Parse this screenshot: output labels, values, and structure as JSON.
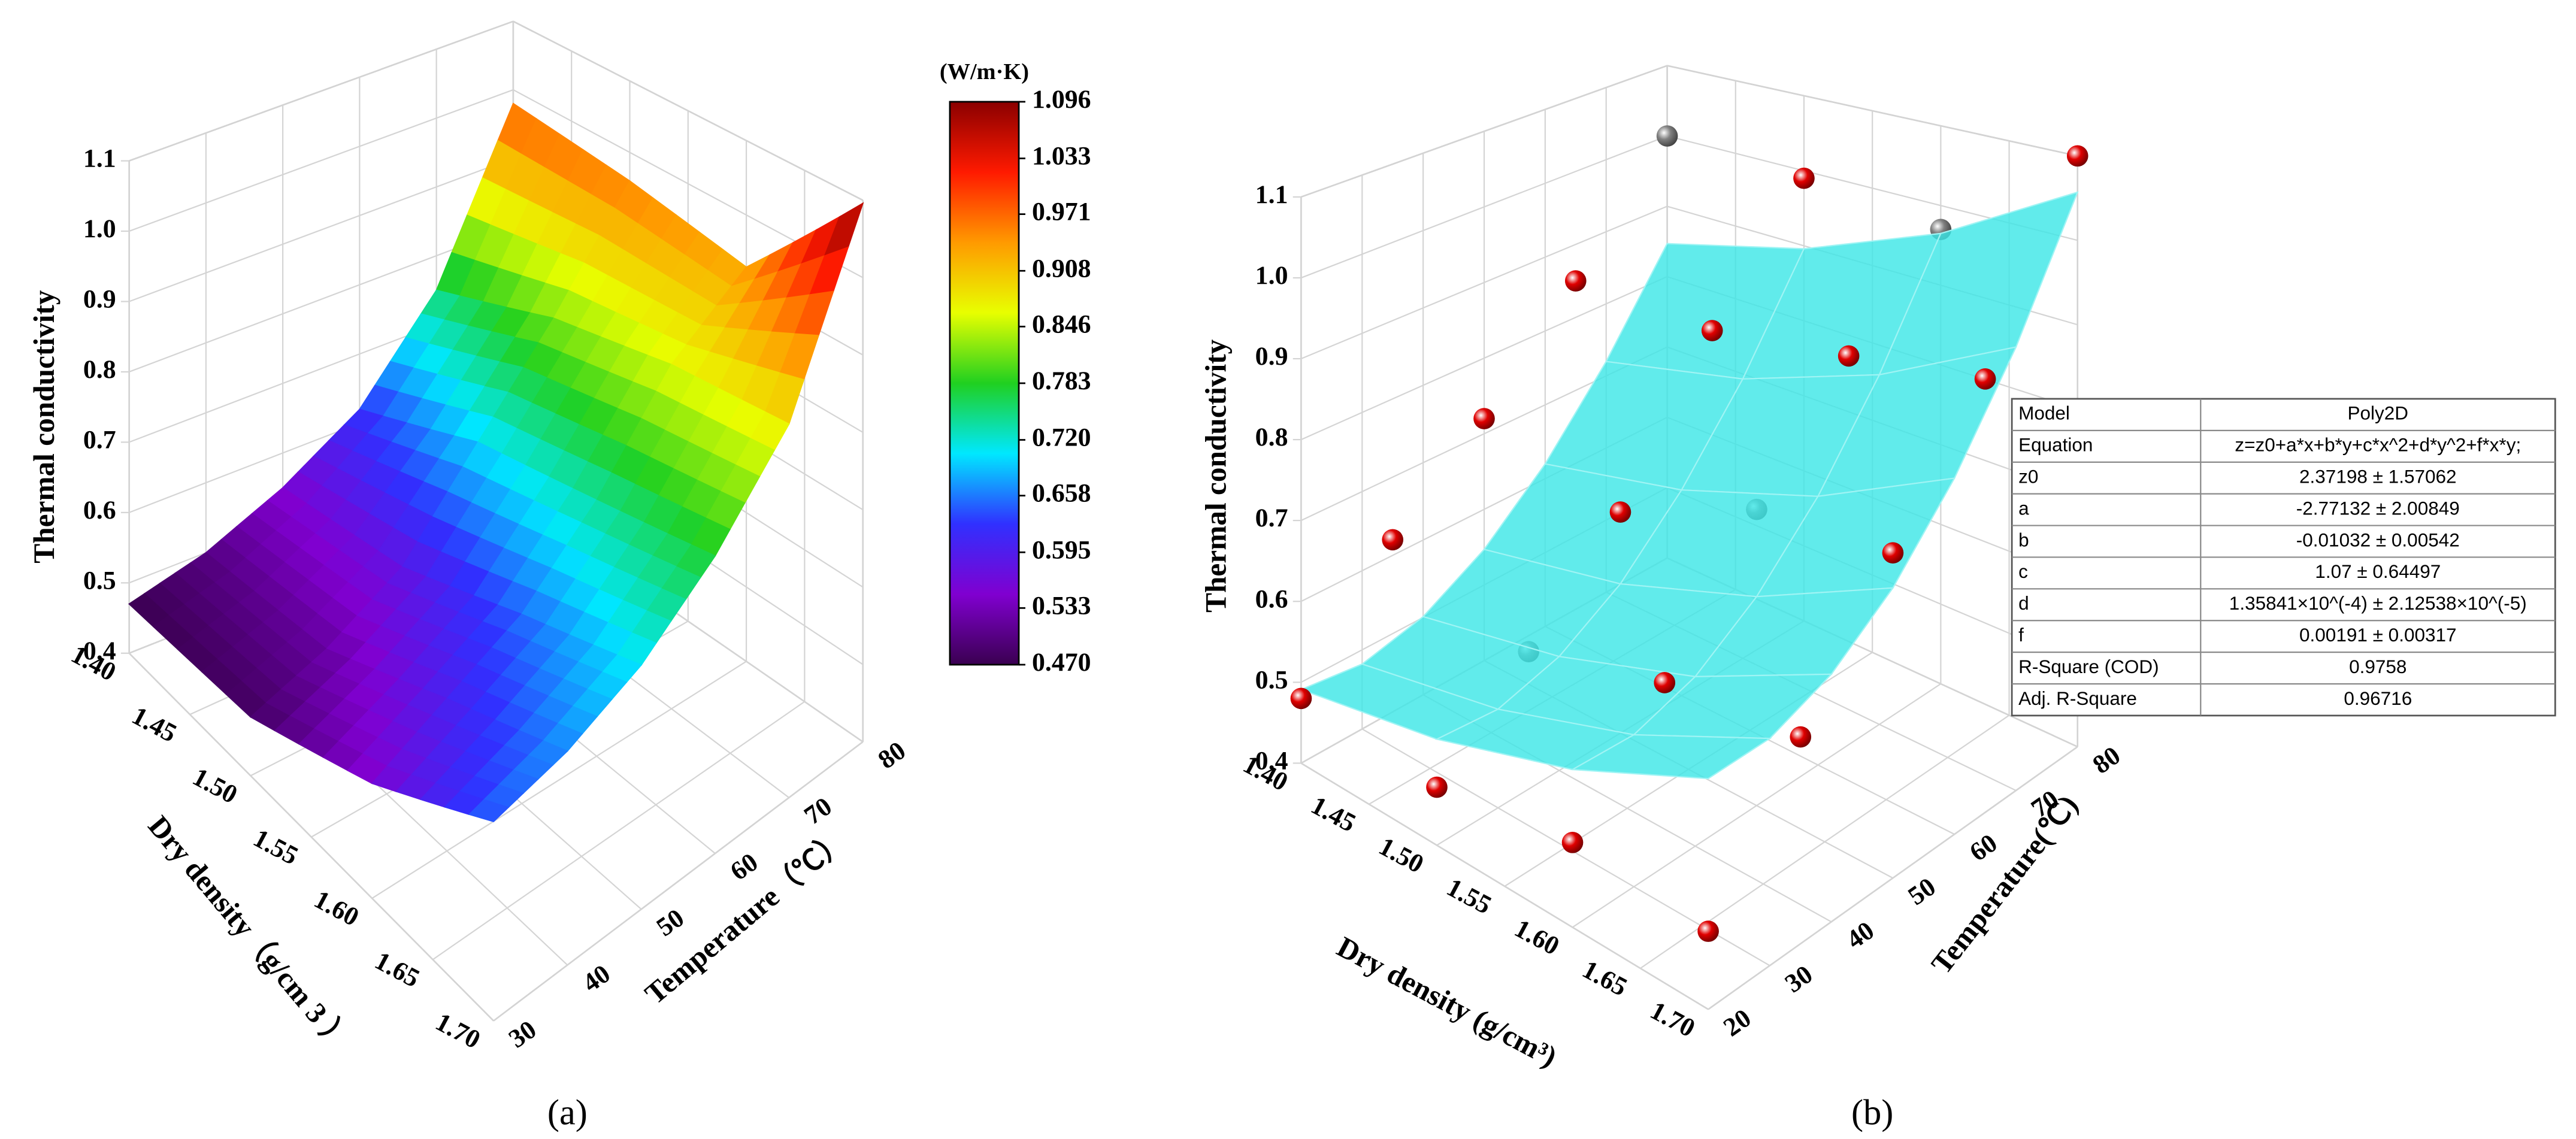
{
  "chart_data": [
    {
      "type": "surface3d",
      "panel_label": "(a)",
      "zlabel": "Thermal conductivity",
      "xlabel": "Dry density（g/cm 3 ）",
      "ylabel": "Temperature（℃）",
      "x": [
        1.4,
        1.5,
        1.6,
        1.7
      ],
      "y": [
        30,
        40,
        50,
        60,
        70,
        80
      ],
      "values": [
        [
          0.47,
          0.5,
          0.55,
          0.62,
          0.75,
          0.98
        ],
        [
          0.48,
          0.52,
          0.58,
          0.7,
          0.82,
          0.96
        ],
        [
          0.55,
          0.6,
          0.65,
          0.74,
          0.86,
          0.93
        ],
        [
          0.65,
          0.67,
          0.71,
          0.78,
          0.88,
          1.096
        ]
      ],
      "xlim": [
        1.4,
        1.7
      ],
      "xticks": [
        {
          "value": 1.4,
          "label": "1.40"
        },
        1.45,
        {
          "value": 1.5,
          "label": "1.50"
        },
        1.55,
        {
          "value": 1.6,
          "label": "1.60"
        },
        1.65,
        {
          "value": 1.7,
          "label": "1.70"
        }
      ],
      "ylim": [
        30,
        80
      ],
      "yticks": [
        30,
        40,
        50,
        60,
        70,
        80
      ],
      "zlim": [
        0.4,
        1.1
      ],
      "zticks": [
        0.4,
        0.5,
        0.6,
        0.7,
        0.8,
        0.9,
        {
          "value": 1,
          "label": "1.0"
        },
        1.1
      ],
      "colormap": [
        "#3a0050",
        "#8000d0",
        "#3030ff",
        "#00e8ff",
        "#20d020",
        "#e8ff00",
        "#ff9a00",
        "#ff1a00",
        "#8b0000"
      ],
      "colorbar": {
        "title": "(W/m·K)",
        "lim": [
          0.47,
          1.096
        ],
        "ticks": [
          1.096,
          1.033,
          0.971,
          0.908,
          0.846,
          0.783,
          {
            "value": 0.72,
            "label": "0.720"
          },
          0.658,
          0.595,
          0.533,
          {
            "value": 0.47,
            "label": "0.470"
          }
        ]
      }
    },
    {
      "type": "scatter3d",
      "panel_label": "(b)",
      "zlabel": "Thermal conductivity",
      "xlabel": "Dry density (g/cm³)",
      "ylabel": "Temperature(℃)",
      "x": [
        1.4,
        1.4,
        1.4,
        1.4,
        1.4,
        1.5,
        1.5,
        1.5,
        1.5,
        1.5,
        1.6,
        1.6,
        1.6,
        1.6,
        1.6,
        1.7,
        1.7,
        1.7,
        1.7,
        1.7
      ],
      "y": [
        20,
        35,
        50,
        65,
        80,
        20,
        35,
        50,
        65,
        80,
        20,
        35,
        50,
        65,
        80,
        20,
        35,
        50,
        65,
        80
      ],
      "z": [
        0.48,
        0.62,
        0.72,
        0.85,
        1.0,
        0.47,
        0.57,
        0.68,
        0.85,
        0.99,
        0.5,
        0.62,
        0.76,
        0.88,
        0.97,
        0.49,
        0.64,
        0.78,
        0.91,
        1.1
      ],
      "point_colors": [
        "#e00000",
        "#e00000",
        "#e00000",
        "#e00000",
        "#808080",
        "#e00000",
        "#808080",
        "#e00000",
        "#e00000",
        "#e00000",
        "#e00000",
        "#e00000",
        "#808080",
        "#e00000",
        "#808080",
        "#e00000",
        "#e00000",
        "#e00000",
        "#e00000",
        "#e00000"
      ],
      "surface": {
        "color": "#3ee6e6",
        "x": [
          1.4,
          1.5,
          1.6,
          1.7
        ],
        "y": [
          20,
          30,
          40,
          50,
          60,
          70,
          80
        ],
        "values": [
          [
            0.491,
            0.482,
            0.501,
            0.547,
            0.62,
            0.72,
            0.847
          ],
          [
            0.528,
            0.521,
            0.542,
            0.589,
            0.665,
            0.766,
            0.896
          ],
          [
            0.586,
            0.581,
            0.604,
            0.654,
            0.73,
            0.834,
            0.965
          ],
          [
            0.666,
            0.663,
            0.688,
            0.739,
            0.818,
            0.923,
            1.057
          ]
        ]
      },
      "xlim": [
        1.4,
        1.7
      ],
      "xticks": [
        {
          "value": 1.4,
          "label": "1.40"
        },
        1.45,
        {
          "value": 1.5,
          "label": "1.50"
        },
        1.55,
        {
          "value": 1.6,
          "label": "1.60"
        },
        1.65,
        {
          "value": 1.7,
          "label": "1.70"
        }
      ],
      "ylim": [
        20,
        80
      ],
      "yticks": [
        20,
        30,
        40,
        50,
        60,
        70,
        80
      ],
      "zlim": [
        0.4,
        1.1
      ],
      "zticks": [
        0.4,
        0.5,
        0.6,
        0.7,
        0.8,
        0.9,
        {
          "value": 1,
          "label": "1.0"
        },
        1.1
      ],
      "table": {
        "rows": [
          [
            "Model",
            "Poly2D"
          ],
          [
            "Equation",
            "z=z0+a*x+b*y+c*x^2+d*y^2+f*x*y;"
          ],
          [
            "z0",
            "2.37198 ± 1.57062"
          ],
          [
            "a",
            "-2.77132 ± 2.00849"
          ],
          [
            "b",
            "-0.01032 ± 0.00542"
          ],
          [
            "c",
            "1.07 ± 0.64497"
          ],
          [
            "d",
            "1.35841×10^(-4) ± 2.12538×10^(-5)"
          ],
          [
            "f",
            "0.00191 ± 0.00317"
          ],
          [
            "R-Square (COD)",
            "0.9758"
          ],
          [
            "Adj. R-Square",
            "0.96716"
          ]
        ]
      }
    }
  ]
}
